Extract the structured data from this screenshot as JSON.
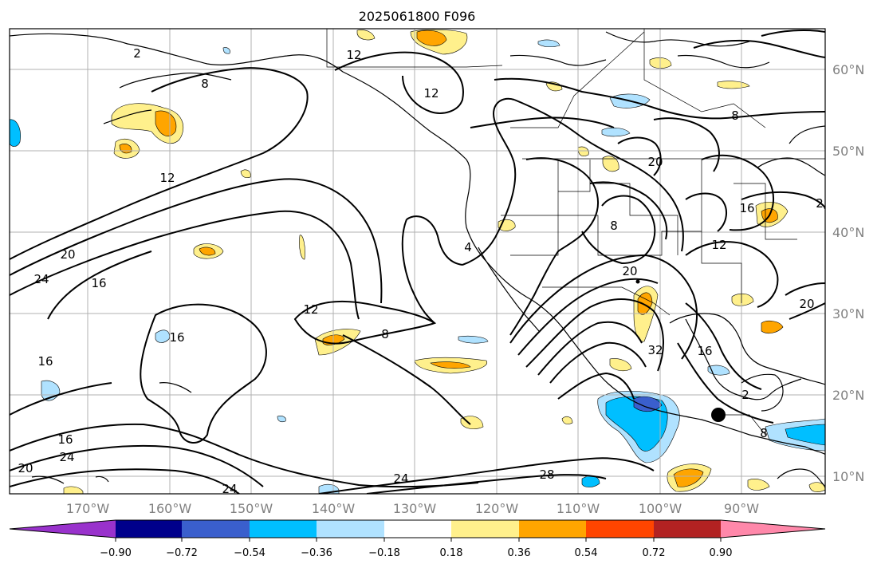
{
  "title": "2025061800 F096",
  "map": {
    "lon_ticks": [
      "170°W",
      "160°W",
      "150°W",
      "140°W",
      "130°W",
      "120°W",
      "110°W",
      "100°W",
      "90°W"
    ],
    "lat_ticks": [
      "60°N",
      "50°N",
      "40°N",
      "30°N",
      "20°N",
      "10°N"
    ],
    "contour_labels": [
      "12",
      "8",
      "12",
      "8",
      "12",
      "20",
      "24",
      "16",
      "12",
      "8",
      "16",
      "16",
      "4",
      "8",
      "20",
      "16",
      "12",
      "2",
      "20",
      "32",
      "16",
      "28",
      "24",
      "24",
      "20",
      "24",
      "16",
      "20",
      "2",
      "2",
      "8"
    ]
  },
  "colorbar": {
    "tick_labels": [
      "−0.90",
      "−0.72",
      "−0.54",
      "−0.36",
      "−0.18",
      "0.18",
      "0.36",
      "0.54",
      "0.72",
      "0.90"
    ],
    "colors": [
      "#9932cc",
      "#00008b",
      "#3a5fcd",
      "#00bfff",
      "#b0e2ff",
      "#ffffff",
      "#fff08c",
      "#ffa500",
      "#ff4500",
      "#b22222",
      "#ff88aa"
    ]
  }
}
